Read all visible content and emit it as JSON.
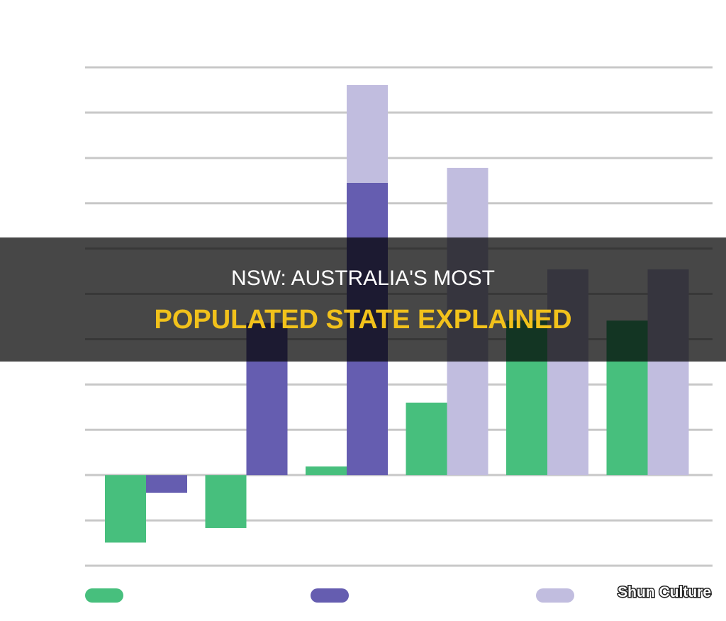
{
  "headline": [
    "NSW: AUSTRALIA'S MOST",
    "POPULATED STATE EXPLAINED"
  ],
  "watermark": "Shun Culture",
  "chart_data": {
    "type": "bar",
    "categories": [
      null,
      null,
      null,
      null,
      null,
      null
    ],
    "ylim": [
      -20000,
      90000
    ],
    "yticks": [
      -20000,
      -10000,
      0,
      10000,
      20000,
      30000,
      40000,
      50000,
      60000,
      70000,
      80000,
      90000
    ],
    "grid": true,
    "series": [
      {
        "color": "#47bf7d",
        "values": [
          -14900,
          -11700,
          1900,
          16000,
          34100,
          34100
        ]
      },
      {
        "color": "#655db0",
        "values": [
          -3900,
          33600,
          64500,
          null,
          null,
          null
        ]
      },
      {
        "color": "#c1bddf",
        "values": [
          null,
          null,
          21600,
          67800,
          45400,
          45400
        ]
      }
    ]
  }
}
